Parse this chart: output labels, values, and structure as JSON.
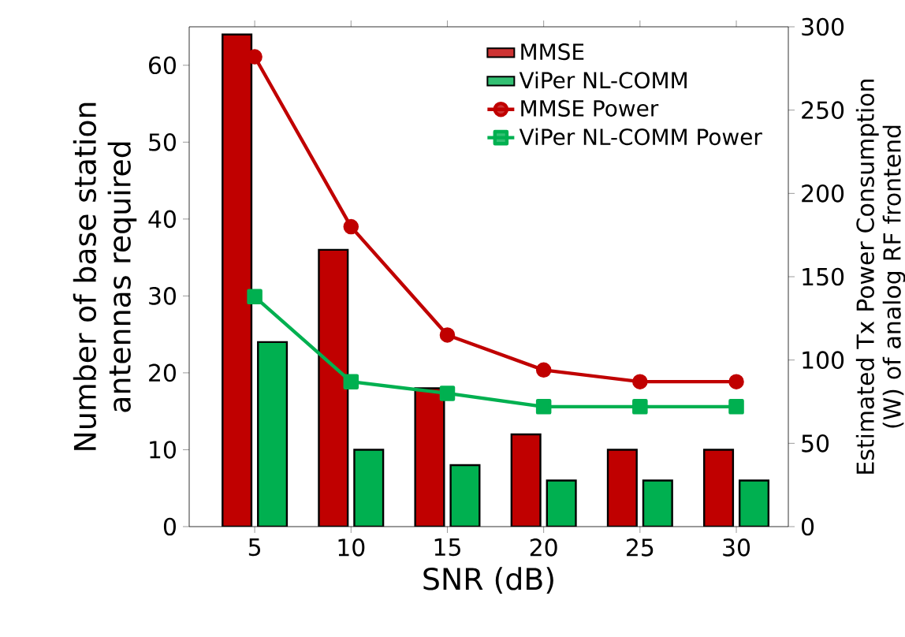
{
  "chart_data": {
    "type": "bar",
    "xlabel": "SNR (dB)",
    "ylabel": "Number of base station antennas required",
    "y2label": "Estimated Tx Power Consumption (W) of analog RF frontend",
    "x": [
      5,
      10,
      15,
      20,
      25,
      30
    ],
    "xlim": [
      1.6,
      32.7
    ],
    "xticks": [
      5,
      10,
      15,
      20,
      25,
      30
    ],
    "ylim": [
      0,
      65
    ],
    "yticks": [
      0,
      10,
      20,
      30,
      40,
      50,
      60
    ],
    "y2lim": [
      0,
      300
    ],
    "y2ticks": [
      0,
      50,
      100,
      150,
      200,
      250,
      300
    ],
    "legend": "top right",
    "grid": false,
    "series": [
      {
        "name": "MMSE",
        "color": "#c00000",
        "values": [
          64,
          36,
          18,
          12,
          10,
          10
        ]
      },
      {
        "name": "ViPer NL-COMM",
        "color": "#00b050",
        "values": [
          24,
          10,
          8,
          6,
          6,
          6
        ]
      },
      {
        "name": "MMSE Power",
        "type": "line",
        "axis": "y2",
        "marker": "circle",
        "line_style": "solid",
        "color": "#c00000",
        "values": [
          282,
          180,
          115,
          94,
          87,
          87
        ]
      },
      {
        "name": "ViPer NL-COMM Power",
        "type": "line",
        "axis": "y2",
        "marker": "square",
        "line_style": "solid",
        "color": "#00b050",
        "values": [
          138,
          87,
          80,
          72,
          72,
          72
        ]
      }
    ]
  }
}
